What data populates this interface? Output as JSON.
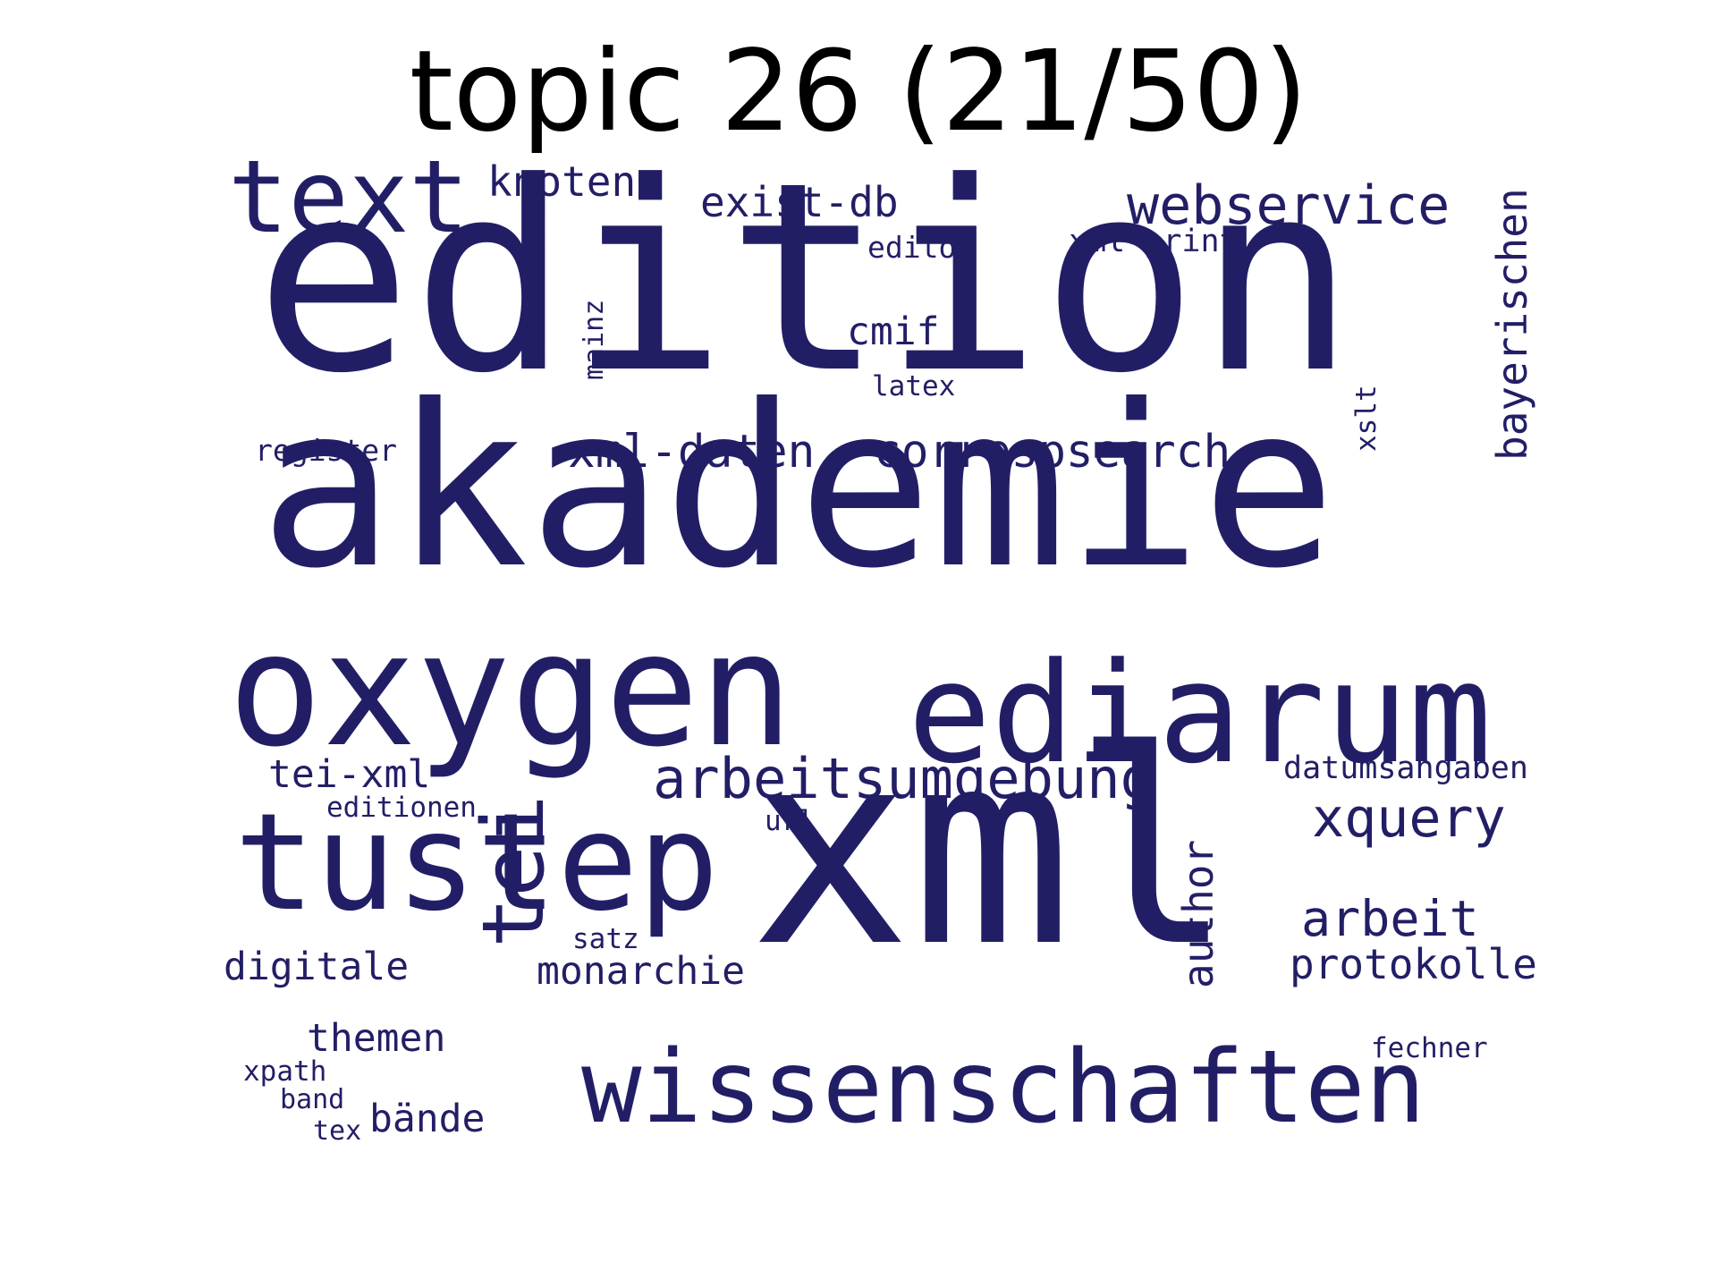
{
  "title": "topic 26 (21/50)",
  "word_color": "#221e66",
  "words": [
    {
      "text": "edition"
    },
    {
      "text": "akademie"
    },
    {
      "text": "xml"
    },
    {
      "text": "oxygen"
    },
    {
      "text": "ediarum"
    },
    {
      "text": "tustep"
    },
    {
      "text": "wissenschaften"
    },
    {
      "text": "text"
    },
    {
      "text": "tei"
    },
    {
      "text": "arbeitsumgebung"
    },
    {
      "text": "webservice"
    },
    {
      "text": "correspsearch"
    },
    {
      "text": "xml-daten"
    },
    {
      "text": "xquery"
    },
    {
      "text": "arbeit"
    },
    {
      "text": "bayerischen"
    },
    {
      "text": "exist-db"
    },
    {
      "text": "knoten"
    },
    {
      "text": "author"
    },
    {
      "text": "protokolle"
    },
    {
      "text": "monarchie"
    },
    {
      "text": "digitale"
    },
    {
      "text": "tei-xml"
    },
    {
      "text": "cmif"
    },
    {
      "text": "themen"
    },
    {
      "text": "bände"
    },
    {
      "text": "datumsangaben"
    },
    {
      "text": "xml-print"
    },
    {
      "text": "editor"
    },
    {
      "text": "register"
    },
    {
      "text": "editionen"
    },
    {
      "text": "latex"
    },
    {
      "text": "xslt"
    },
    {
      "text": "mainz"
    },
    {
      "text": "url"
    },
    {
      "text": "satz"
    },
    {
      "text": "fechner"
    },
    {
      "text": "xpath"
    },
    {
      "text": "band"
    },
    {
      "text": "tex"
    }
  ]
}
